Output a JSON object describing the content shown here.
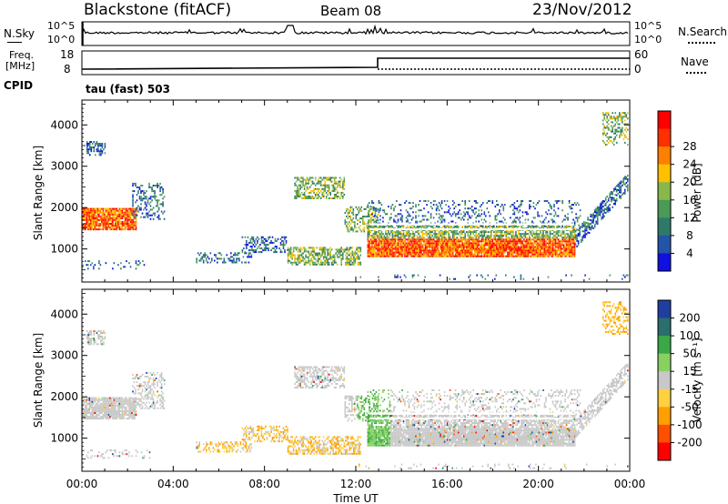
{
  "header": {
    "station": "Blackstone (fitACF)",
    "beam": "Beam 08",
    "date": "23/Nov/2012"
  },
  "panel_labels": {
    "nsky": "N.Sky",
    "nsearch": "N.Search",
    "freq_line1": "Freq.",
    "freq_line2": "[MHz]",
    "nave": "Nave",
    "cpid": "CPID",
    "cpid_value": "tau (fast) 503",
    "nsky_ticks": [
      "10^5",
      "10^0"
    ],
    "nsearch_ticks": [
      "10^5",
      "10^0"
    ],
    "freq_ticks": [
      "18",
      "8"
    ],
    "nave_ticks": [
      "60",
      "0"
    ]
  },
  "chart_data": [
    {
      "type": "heatmap",
      "name": "power",
      "ylabel": "Slant Range [km]",
      "xlabel": "Time UT",
      "x_ticks": [
        "00:00",
        "04:00",
        "08:00",
        "12:00",
        "16:00",
        "20:00",
        "00:00"
      ],
      "xlim_hours": [
        0,
        24
      ],
      "ylim": [
        200,
        4600
      ],
      "y_ticks": [
        1000,
        2000,
        3000,
        4000
      ],
      "colorbar": {
        "label": "Power [dB]",
        "ticks": [
          "4",
          "8",
          "12",
          "16",
          "20",
          "24",
          "28"
        ],
        "colors": [
          "#1010e0",
          "#2255a8",
          "#2e7a6a",
          "#4a9a58",
          "#88b84a",
          "#ffc000",
          "#ff8000",
          "#ff3000",
          "#ff0000"
        ]
      }
    },
    {
      "type": "heatmap",
      "name": "velocity",
      "ylabel": "Slant Range [km]",
      "xlabel": "Time UT",
      "x_ticks": [
        "00:00",
        "04:00",
        "08:00",
        "12:00",
        "16:00",
        "20:00",
        "00:00"
      ],
      "xlim_hours": [
        0,
        24
      ],
      "ylim": [
        200,
        4600
      ],
      "y_ticks": [
        1000,
        2000,
        3000,
        4000
      ],
      "colorbar": {
        "label": "Velocity [m s⁻¹]",
        "ticks": [
          "200",
          "100",
          "50",
          "15",
          "-15",
          "-50",
          "-100",
          "-200"
        ],
        "colors": [
          "#1f3fa0",
          "#2a6e6e",
          "#3aa848",
          "#88d060",
          "#c8c8c8",
          "#ffd040",
          "#ffa000",
          "#ff5000",
          "#ff0000"
        ]
      }
    }
  ],
  "time_axis_title": "Time UT"
}
